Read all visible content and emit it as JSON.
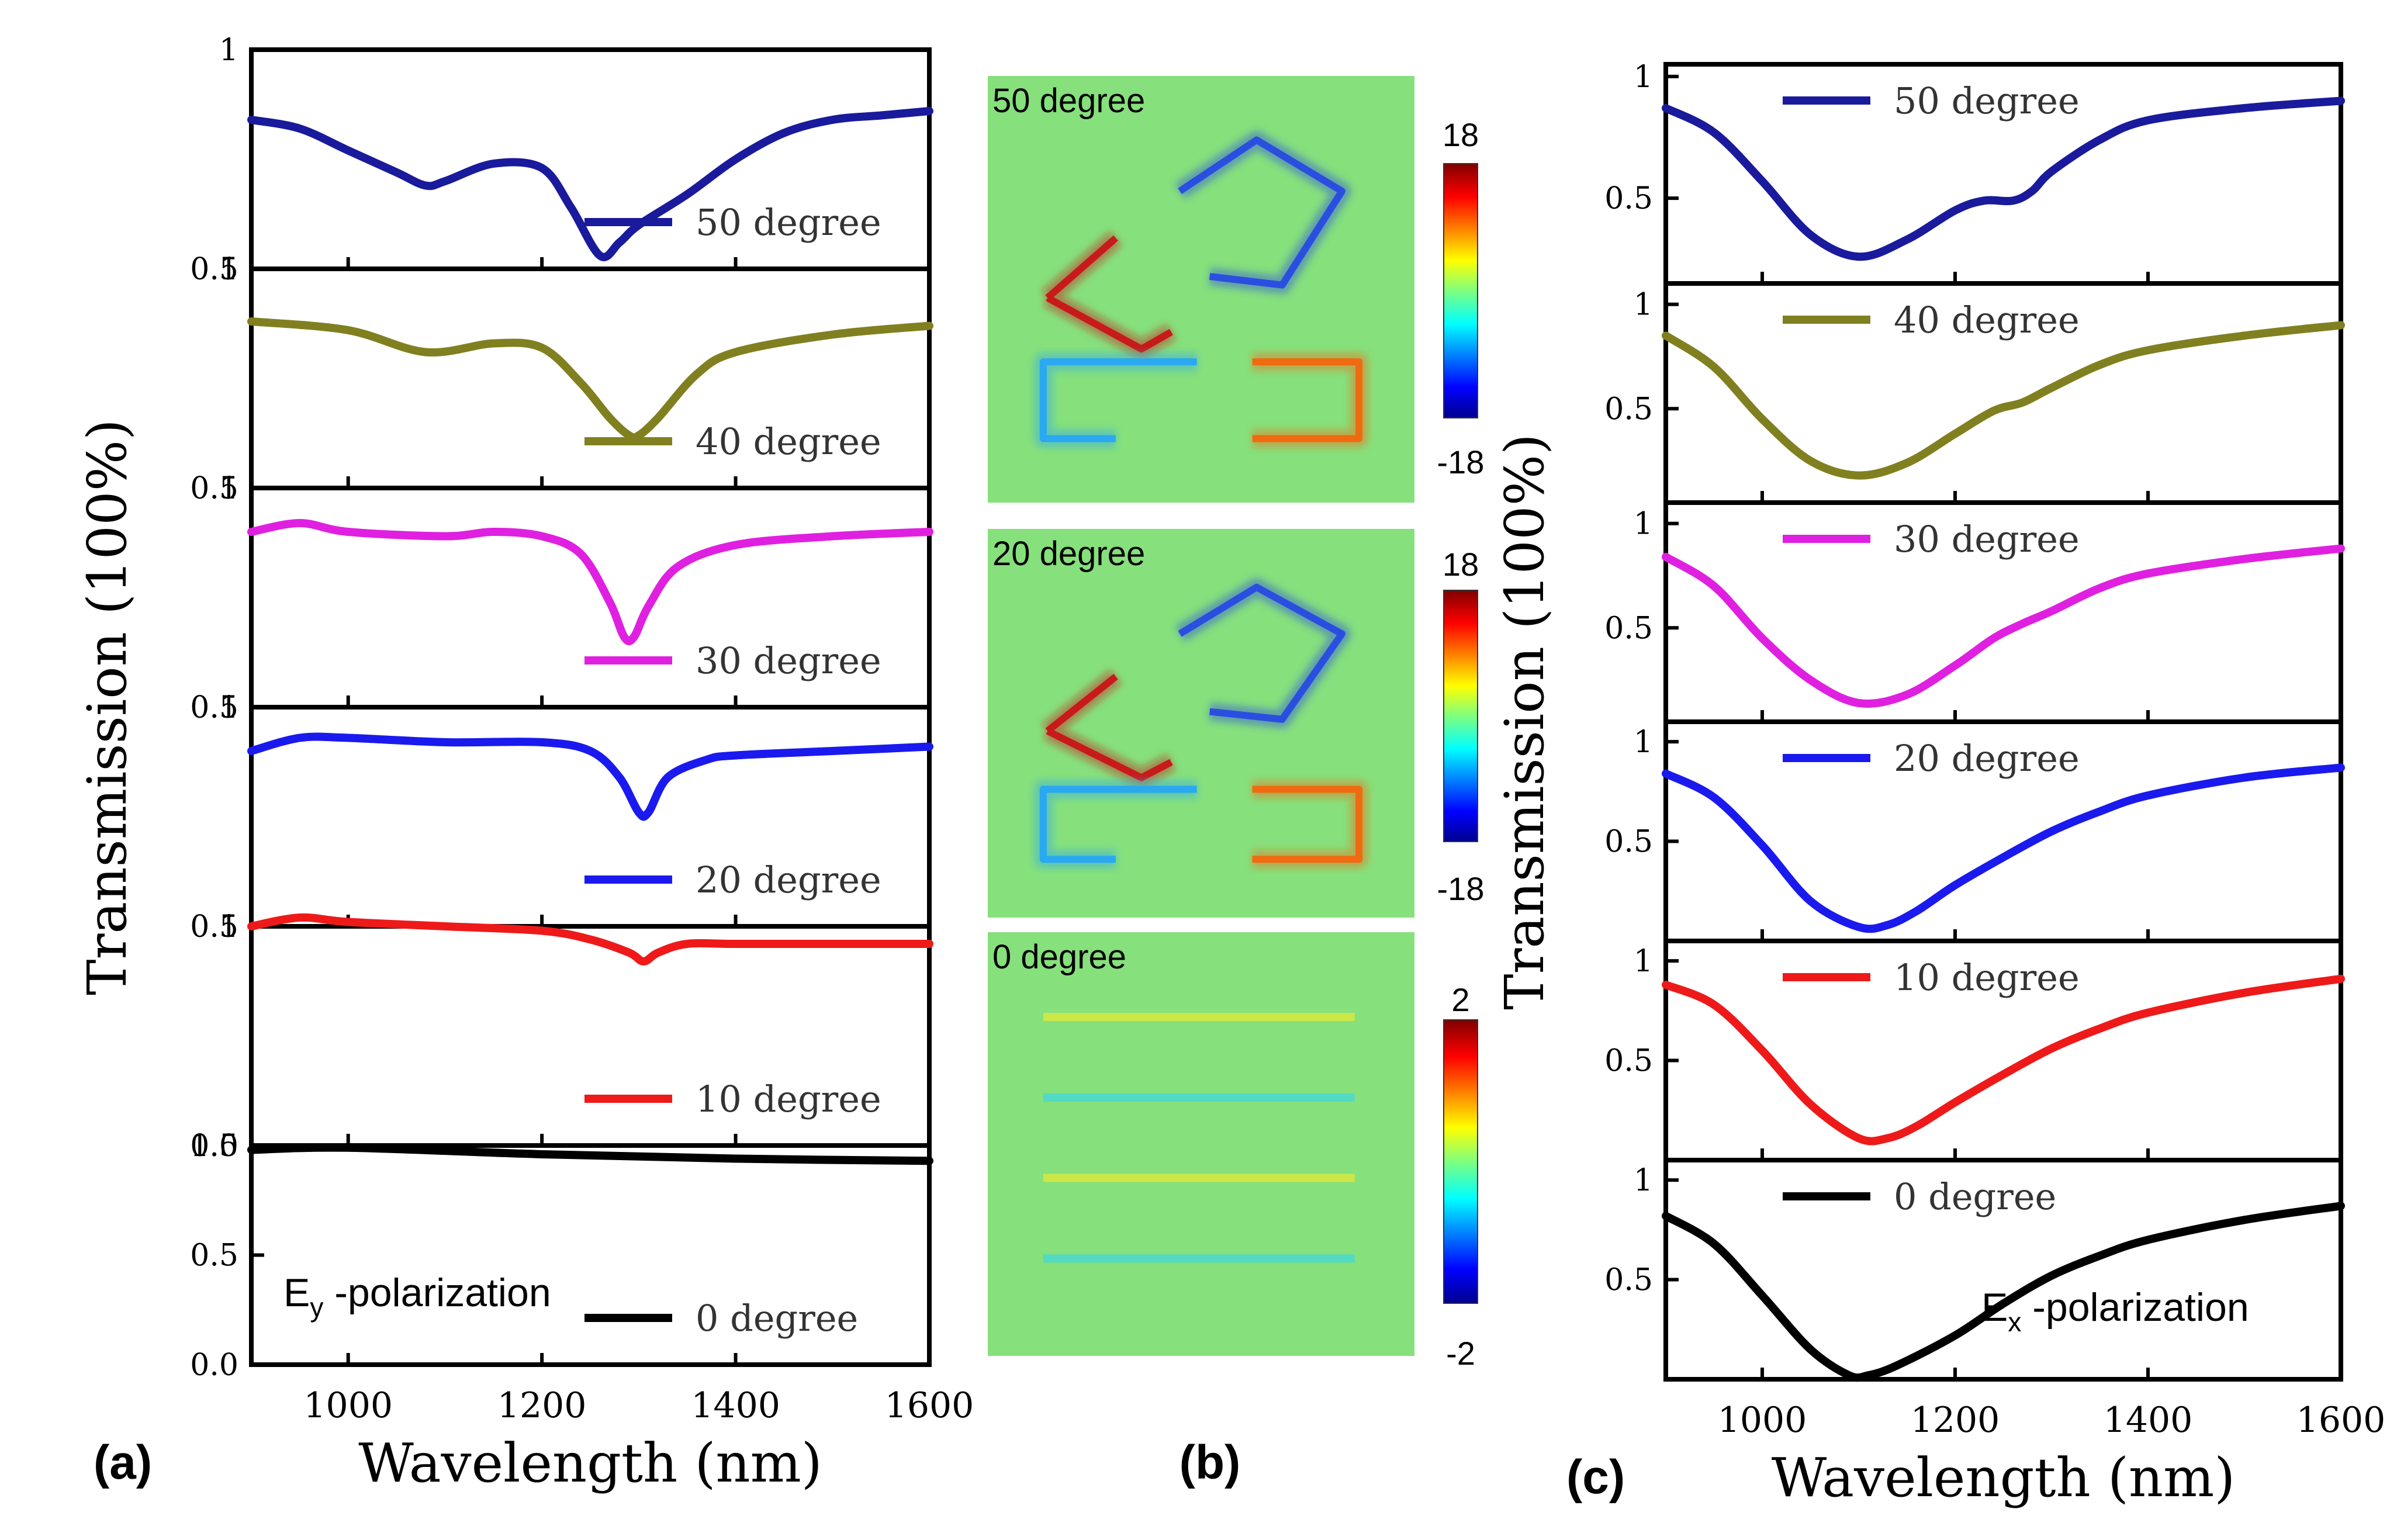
{
  "chart_data": [
    {
      "panel": "a",
      "type": "line",
      "panel_label": "(a)",
      "xlabel": "Wavelength (nm)",
      "ylabel": "Transmission (100%)",
      "xlim": [
        900,
        1600
      ],
      "xticks": [
        "1000",
        "1200",
        "1400",
        "1600"
      ],
      "polarization": {
        "main": "E",
        "sub": "y",
        "rest": " -polarization"
      },
      "subplots": [
        {
          "legend": "50 degree",
          "color": "#1a1a9c",
          "ylim": [
            0.5,
            1.0
          ],
          "yticks": [
            "1",
            "0.5"
          ],
          "x": [
            900,
            950,
            1000,
            1050,
            1080,
            1100,
            1150,
            1200,
            1230,
            1260,
            1280,
            1300,
            1350,
            1400,
            1450,
            1500,
            1550,
            1600
          ],
          "y": [
            0.84,
            0.82,
            0.77,
            0.72,
            0.69,
            0.7,
            0.74,
            0.73,
            0.64,
            0.53,
            0.56,
            0.6,
            0.67,
            0.75,
            0.81,
            0.84,
            0.85,
            0.86
          ]
        },
        {
          "legend": "40 degree",
          "color": "#808020",
          "ylim": [
            0.5,
            1.0
          ],
          "yticks": [
            "1",
            "0.5"
          ],
          "x": [
            900,
            1000,
            1080,
            1150,
            1200,
            1240,
            1270,
            1290,
            1300,
            1320,
            1360,
            1400,
            1500,
            1600
          ],
          "y": [
            0.88,
            0.86,
            0.81,
            0.83,
            0.82,
            0.74,
            0.66,
            0.62,
            0.62,
            0.66,
            0.76,
            0.81,
            0.85,
            0.87
          ]
        },
        {
          "legend": "30 degree",
          "color": "#e020e0",
          "ylim": [
            0.5,
            1.0
          ],
          "yticks": [
            "1",
            "0.5"
          ],
          "x": [
            900,
            950,
            1000,
            1100,
            1150,
            1200,
            1240,
            1270,
            1285,
            1295,
            1310,
            1340,
            1400,
            1500,
            1600
          ],
          "y": [
            0.9,
            0.92,
            0.9,
            0.89,
            0.9,
            0.89,
            0.85,
            0.74,
            0.66,
            0.66,
            0.73,
            0.82,
            0.87,
            0.89,
            0.9
          ]
        },
        {
          "legend": "20 degree",
          "color": "#1a1aee",
          "ylim": [
            0.5,
            1.0
          ],
          "yticks": [
            "1",
            "0.5"
          ],
          "x": [
            900,
            950,
            1000,
            1100,
            1200,
            1250,
            1280,
            1300,
            1310,
            1330,
            1370,
            1400,
            1500,
            1600
          ],
          "y": [
            0.9,
            0.93,
            0.93,
            0.92,
            0.92,
            0.9,
            0.84,
            0.76,
            0.76,
            0.84,
            0.88,
            0.89,
            0.9,
            0.91
          ]
        },
        {
          "legend": "10 degree",
          "color": "#ee1a1a",
          "ylim": [
            0.5,
            1.0
          ],
          "yticks": [
            "1",
            "0.5"
          ],
          "x": [
            900,
            950,
            1000,
            1100,
            1200,
            1250,
            1290,
            1305,
            1320,
            1350,
            1400,
            1500,
            1600
          ],
          "y": [
            1.0,
            1.02,
            1.01,
            1.0,
            0.99,
            0.97,
            0.94,
            0.92,
            0.94,
            0.96,
            0.96,
            0.96,
            0.96
          ]
        },
        {
          "legend": "0 degree",
          "color": "#000000",
          "ylim": [
            0.0,
            1.0
          ],
          "yticks": [
            "1.0",
            "0.5",
            "0.0"
          ],
          "x": [
            900,
            1000,
            1200,
            1400,
            1600
          ],
          "y": [
            0.98,
            0.99,
            0.96,
            0.94,
            0.93
          ]
        }
      ]
    },
    {
      "panel": "b",
      "type": "heatmap",
      "panel_label": "(b)",
      "maps": [
        {
          "title": "50 degree",
          "cbar_max": "18",
          "cbar_min": "-18"
        },
        {
          "title": "20 degree",
          "cbar_max": "18",
          "cbar_min": "-18"
        },
        {
          "title": "0 degree",
          "cbar_max": "2",
          "cbar_min": "-2"
        }
      ]
    },
    {
      "panel": "c",
      "type": "line",
      "panel_label": "(c)",
      "xlabel": "Wavelength (nm)",
      "ylabel": "Transmission (100%)",
      "xlim": [
        900,
        1600
      ],
      "xticks": [
        "1000",
        "1200",
        "1400",
        "1600"
      ],
      "polarization": {
        "main": "E",
        "sub": "x",
        "rest": " -polarization"
      },
      "subplots": [
        {
          "legend": "50 degree",
          "color": "#1a1a9c",
          "ylim": [
            0.15,
            1.05
          ],
          "yticks": [
            "1",
            "0.5"
          ],
          "x": [
            900,
            950,
            1000,
            1050,
            1100,
            1150,
            1200,
            1230,
            1260,
            1280,
            1300,
            1350,
            1400,
            1500,
            1600
          ],
          "y": [
            0.87,
            0.77,
            0.57,
            0.35,
            0.26,
            0.33,
            0.45,
            0.49,
            0.49,
            0.53,
            0.61,
            0.74,
            0.82,
            0.87,
            0.9
          ]
        },
        {
          "legend": "40 degree",
          "color": "#808020",
          "ylim": [
            0.05,
            1.1
          ],
          "yticks": [
            "1",
            "0.5"
          ],
          "x": [
            900,
            950,
            1000,
            1050,
            1100,
            1150,
            1200,
            1240,
            1270,
            1300,
            1350,
            1400,
            1500,
            1600
          ],
          "y": [
            0.85,
            0.7,
            0.45,
            0.25,
            0.18,
            0.24,
            0.38,
            0.49,
            0.53,
            0.6,
            0.71,
            0.78,
            0.85,
            0.9
          ]
        },
        {
          "legend": "30 degree",
          "color": "#e020e0",
          "ylim": [
            0.05,
            1.1
          ],
          "yticks": [
            "1",
            "0.5"
          ],
          "x": [
            900,
            950,
            1000,
            1050,
            1100,
            1150,
            1200,
            1240,
            1270,
            1300,
            1350,
            1400,
            1500,
            1600
          ],
          "y": [
            0.84,
            0.7,
            0.45,
            0.25,
            0.14,
            0.18,
            0.32,
            0.45,
            0.52,
            0.58,
            0.69,
            0.76,
            0.83,
            0.88
          ]
        },
        {
          "legend": "20 degree",
          "color": "#1a1aee",
          "ylim": [
            0.0,
            1.1
          ],
          "yticks": [
            "1",
            "0.5"
          ],
          "x": [
            900,
            950,
            1000,
            1050,
            1100,
            1130,
            1160,
            1200,
            1250,
            1300,
            1350,
            1400,
            1500,
            1600
          ],
          "y": [
            0.84,
            0.72,
            0.48,
            0.2,
            0.07,
            0.08,
            0.15,
            0.28,
            0.42,
            0.55,
            0.65,
            0.73,
            0.82,
            0.87
          ]
        },
        {
          "legend": "10 degree",
          "color": "#ee1a1a",
          "ylim": [
            0.0,
            1.1
          ],
          "yticks": [
            "1",
            "0.5"
          ],
          "x": [
            900,
            950,
            1000,
            1050,
            1100,
            1130,
            1160,
            1200,
            1250,
            1300,
            1350,
            1400,
            1500,
            1600
          ],
          "y": [
            0.88,
            0.78,
            0.55,
            0.28,
            0.11,
            0.11,
            0.17,
            0.29,
            0.43,
            0.56,
            0.66,
            0.74,
            0.84,
            0.91
          ]
        },
        {
          "legend": "0 degree",
          "color": "#000000",
          "ylim": [
            0.0,
            1.1
          ],
          "yticks": [
            "1",
            "0.5"
          ],
          "x": [
            900,
            950,
            1000,
            1050,
            1090,
            1110,
            1140,
            1200,
            1250,
            1300,
            1350,
            1400,
            1500,
            1600
          ],
          "y": [
            0.82,
            0.68,
            0.42,
            0.15,
            0.02,
            0.02,
            0.07,
            0.22,
            0.38,
            0.52,
            0.62,
            0.7,
            0.8,
            0.87
          ]
        }
      ]
    }
  ]
}
